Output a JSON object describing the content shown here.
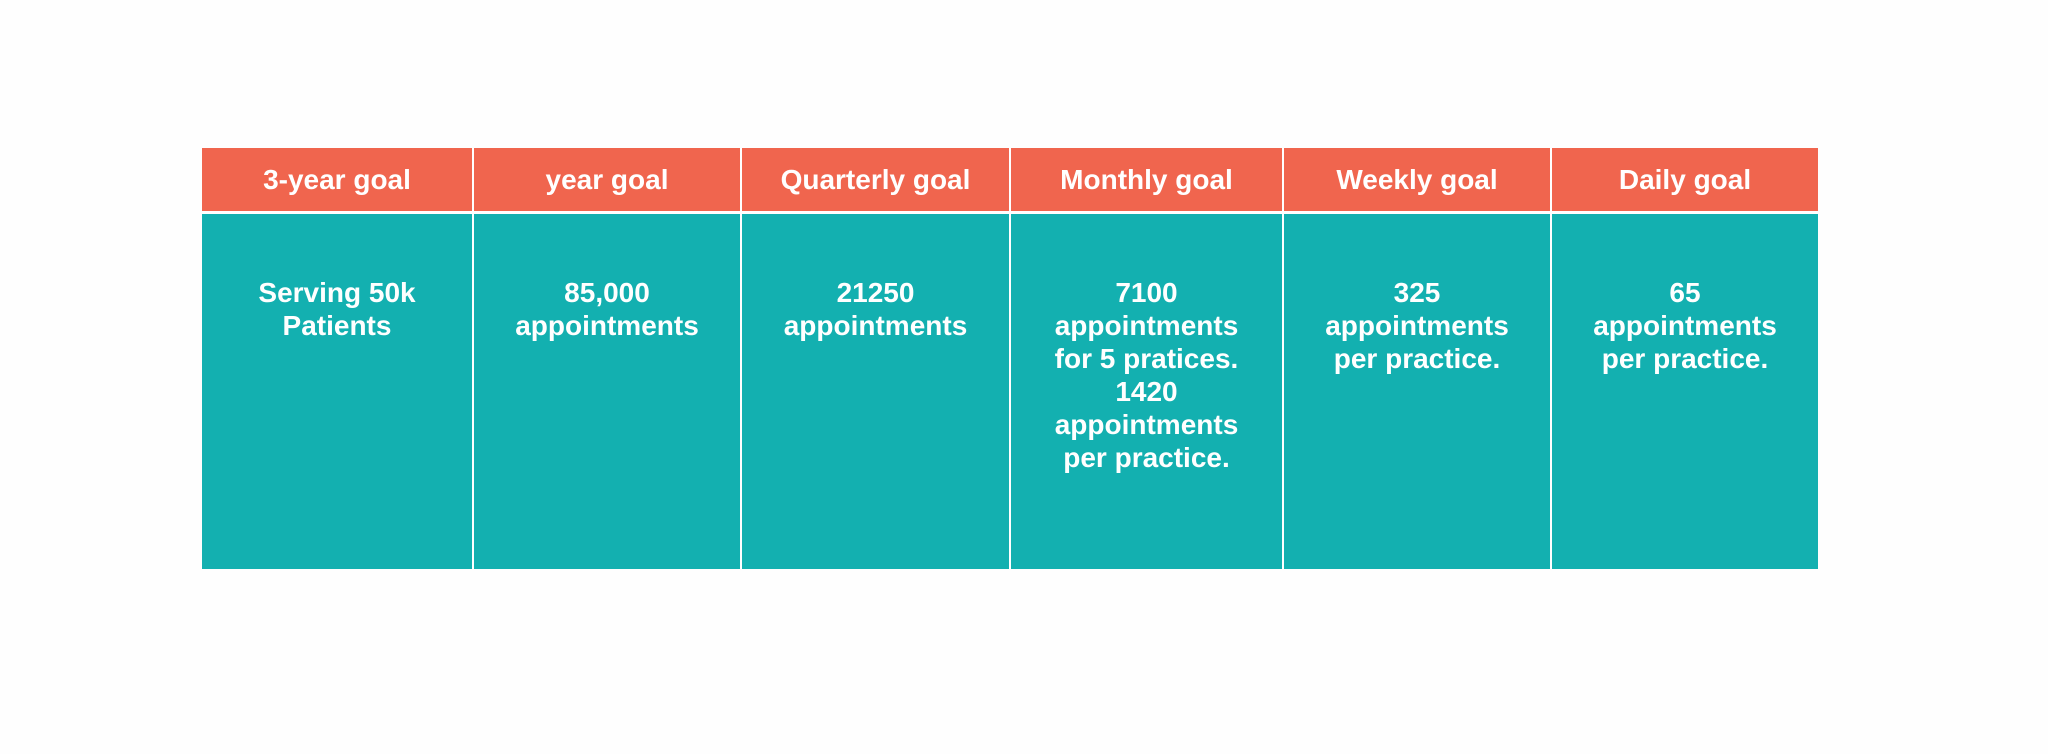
{
  "table": {
    "header": [
      "3-year goal",
      "year goal",
      "Quarterly goal",
      "Monthly goal",
      "Weekly goal",
      "Daily goal"
    ],
    "rows": [
      [
        [
          "Serving 50k",
          "Patients"
        ],
        [
          "85,000",
          "appointments"
        ],
        [
          "21250",
          "appointments"
        ],
        [
          "7100",
          "appointments",
          "for 5 pratices.",
          "1420",
          "appointments",
          "per practice."
        ],
        [
          "325",
          "appointments",
          "per practice."
        ],
        [
          "65",
          "appointments",
          "per practice."
        ]
      ]
    ]
  }
}
